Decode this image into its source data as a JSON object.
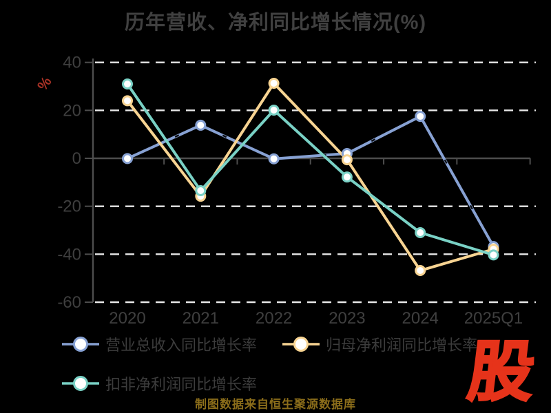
{
  "title": "历年营收、净利同比增长情况(%)",
  "y_axis_unit": "%",
  "source_note": "制图数据来自恒生聚源数据库",
  "logo_text": "股",
  "colors": {
    "background": "#000000",
    "muted_text": "#3f3f3f",
    "grid_dash": "#e8e8e8",
    "axis_line": "#4d4d4d",
    "ylabel_red": "#a93226",
    "source_gold": "#8b6d1a",
    "logo_red": "#e6331a",
    "marker_fill": "#ffffff"
  },
  "chart_data": {
    "type": "line",
    "title": "历年营收、净利同比增长情况(%)",
    "ylabel": "%",
    "xlabel": "",
    "categories": [
      "2020",
      "2021",
      "2022",
      "2023",
      "2024",
      "2025Q1"
    ],
    "series": [
      {
        "name": "营业总收入同比增长率",
        "color": "#87a1d3",
        "values": [
          -0.1,
          13.8,
          -0.2,
          2.0,
          17.5,
          -36.8
        ]
      },
      {
        "name": "归母净利润同比增长率",
        "color": "#f8d492",
        "values": [
          24.0,
          -15.8,
          31.3,
          -0.6,
          -46.8,
          -37.9
        ]
      },
      {
        "name": "扣非净利润同比增长率",
        "color": "#79d1c5",
        "values": [
          31.0,
          -13.5,
          20.1,
          -7.8,
          -31.0,
          -40.3
        ]
      }
    ],
    "yticks": [
      40,
      20,
      0,
      -20,
      -40,
      -60
    ],
    "ylim": [
      -60,
      40
    ],
    "grid": "horizontal dashed white lines, solid dark line at 0",
    "legend_position": "bottom-left, two rows"
  }
}
